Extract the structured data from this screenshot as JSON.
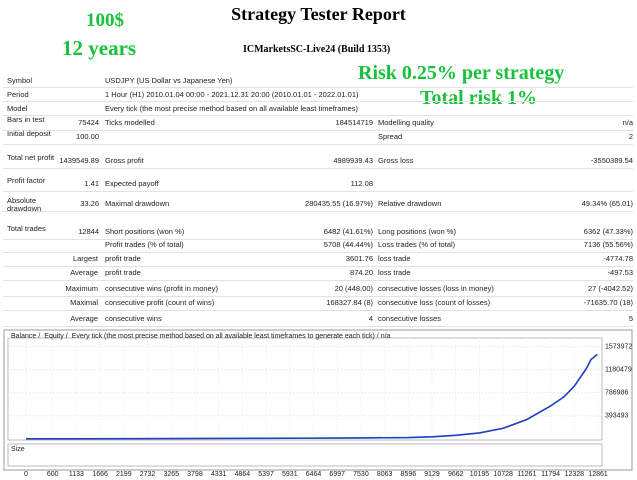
{
  "header": {
    "title": "Strategy Tester Report",
    "server": "ICMarketsSC-Live24 (Build 1353)"
  },
  "overlay": [
    "100$",
    "12 years",
    "Risk 0.25% per strategy",
    "Total risk 1%"
  ],
  "info": [
    {
      "label": "Symbol",
      "text": "USDJPY (US Dollar vs Japanese Yen)"
    },
    {
      "label": "Period",
      "text": "1 Hour (H1) 2010.01.04 00:00 - 2021.12.31 20:00 (2010.01.01 - 2022.01.01)"
    },
    {
      "label": "Model",
      "text": "Every tick (the most precise method based on all available least timeframes)"
    }
  ],
  "table": [
    [
      [
        "Bars in test",
        "75424"
      ],
      [
        "Ticks modelled",
        "184514719"
      ],
      [
        "Modelling quality",
        "n/a"
      ]
    ],
    [
      [
        "Initial deposit",
        "100.00"
      ],
      null,
      [
        "Spread",
        "2"
      ]
    ],
    [
      [
        "Total net profit",
        "1439549.89"
      ],
      [
        "Gross profit",
        "4989939.43"
      ],
      [
        "Gross loss",
        "-3550389.54"
      ]
    ],
    [
      [
        "Profit factor",
        "1.41"
      ],
      [
        "Expected payoff",
        "112.08"
      ]
    ],
    [
      [
        "Absolute drawdown",
        "33.26"
      ],
      [
        "Maximal drawdown",
        "280435.55 (16.97%)"
      ],
      [
        "Relative drawdown",
        "49.34% (65.01)"
      ]
    ],
    [
      [
        "Total trades",
        "12844"
      ],
      [
        "Short positions (won %)",
        "6482 (41.61%)"
      ],
      [
        "Long positions (won %)",
        "6362 (47.33%)"
      ]
    ],
    [
      null,
      [
        "Profit trades (% of total)",
        "5708 (44.44%)"
      ],
      [
        "Loss trades (% of total)",
        "7136 (55.56%)"
      ]
    ],
    [
      [
        "Largest"
      ],
      [
        "profit trade",
        "3601.76"
      ],
      [
        "loss trade",
        "-4774.78"
      ]
    ],
    [
      [
        "Average"
      ],
      [
        "profit trade",
        "874.20"
      ],
      [
        "loss trade",
        "-497.53"
      ]
    ],
    [
      [
        "Maximum"
      ],
      [
        "consecutive wins (profit in money)",
        "20 (448.00)"
      ],
      [
        "consecutive losses (loss in money)",
        "27 (-4042.52)"
      ]
    ],
    [
      [
        "Maximal"
      ],
      [
        "consecutive profit (count of wins)",
        "168327.84 (8)"
      ],
      [
        "consecutive loss (count of losses)",
        "-71635.70 (18)"
      ]
    ],
    [
      [
        "Average"
      ],
      [
        "consecutive wins",
        "4"
      ],
      [
        "consecutive losses",
        "5"
      ]
    ]
  ],
  "chart_data": {
    "type": "line",
    "legend_note": "Every tick (the most precise method based on all available least timeframes to generate each tick) / n/a",
    "size_label": "Size",
    "x": [
      0,
      1133,
      2199,
      3265,
      4331,
      5397,
      6464,
      7530,
      8596,
      9129,
      9662,
      10195,
      10728,
      11261,
      11794,
      12100,
      12328,
      12600,
      12700,
      12844
    ],
    "series": [
      {
        "name": "Balance",
        "color": "#1f3fc4",
        "values": [
          100,
          900,
          2500,
          4500,
          6500,
          9000,
          12000,
          16000,
          22000,
          35000,
          60000,
          100000,
          180000,
          330000,
          560000,
          720000,
          900000,
          1200000,
          1350000,
          1439650
        ]
      },
      {
        "name": "Equity",
        "color": "#1a9e3a",
        "values": [
          100,
          900,
          2500,
          4500,
          6500,
          9000,
          12000,
          16000,
          22000,
          35000,
          60000,
          100000,
          180000,
          330000,
          560000,
          720000,
          900000,
          1200000,
          1350000,
          1439650
        ]
      }
    ],
    "xlim": [
      -405,
      12950
    ],
    "xticks": [
      0,
      600,
      1133,
      1666,
      2199,
      2732,
      3265,
      3798,
      4331,
      4864,
      5397,
      5931,
      6464,
      6997,
      7530,
      8063,
      8596,
      9129,
      9662,
      10195,
      10728,
      11261,
      11794,
      12328,
      12861
    ],
    "ylim": [
      -20000,
      1720000
    ],
    "yticks": [
      393493,
      786986,
      1180479,
      1573972
    ],
    "grid": true
  }
}
